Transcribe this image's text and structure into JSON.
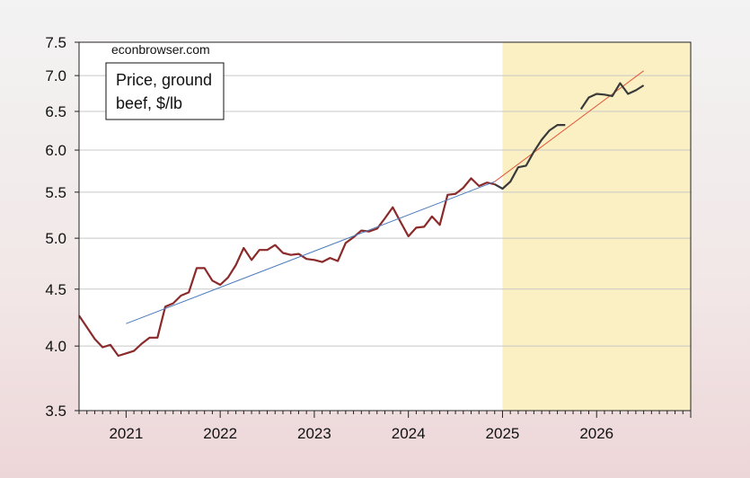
{
  "chart_data": {
    "type": "line",
    "y_scale": "log",
    "ylim": [
      3.5,
      7.5
    ],
    "y_ticks": [
      "3.5",
      "4.0",
      "4.5",
      "5.0",
      "5.5",
      "6.0",
      "6.5",
      "7.0",
      "7.5"
    ],
    "x_ticks": [
      "2021",
      "2022",
      "2023",
      "2024",
      "2025",
      "2026"
    ],
    "xlim": [
      "2020-07",
      "2026-12"
    ],
    "shaded_region": {
      "from": "2025-01",
      "to": "2026-12",
      "color": "#fbf0c4"
    },
    "grid": true,
    "annotation": "econbrowser.com",
    "legend_box": [
      "Price, ground",
      "beef, $/lb"
    ],
    "series": [
      {
        "color": "#8b2a2a",
        "x": [
          "2020-07",
          "2020-08",
          "2020-09",
          "2020-10",
          "2020-11",
          "2020-12",
          "2021-01",
          "2021-02",
          "2021-03",
          "2021-04",
          "2021-05",
          "2021-06",
          "2021-07",
          "2021-08",
          "2021-09",
          "2021-10",
          "2021-11",
          "2021-12",
          "2022-01",
          "2022-02",
          "2022-03",
          "2022-04",
          "2022-05",
          "2022-06",
          "2022-07",
          "2022-08",
          "2022-09",
          "2022-10",
          "2022-11",
          "2022-12",
          "2023-01",
          "2023-02",
          "2023-03",
          "2023-04",
          "2023-05",
          "2023-06",
          "2023-07",
          "2023-08",
          "2023-09",
          "2023-10",
          "2023-11",
          "2023-12",
          "2024-01",
          "2024-02",
          "2024-03",
          "2024-04",
          "2024-05",
          "2024-06",
          "2024-07",
          "2024-08",
          "2024-09",
          "2024-10",
          "2024-11",
          "2024-12"
        ],
        "values": [
          4.26,
          4.16,
          4.06,
          3.99,
          4.01,
          3.92,
          3.94,
          3.96,
          4.02,
          4.07,
          4.07,
          4.34,
          4.37,
          4.44,
          4.47,
          4.7,
          4.7,
          4.58,
          4.54,
          4.61,
          4.73,
          4.9,
          4.78,
          4.88,
          4.88,
          4.93,
          4.85,
          4.83,
          4.84,
          4.79,
          4.78,
          4.76,
          4.8,
          4.77,
          4.95,
          5.01,
          5.08,
          5.07,
          5.1,
          5.21,
          5.33,
          5.17,
          5.02,
          5.11,
          5.12,
          5.23,
          5.14,
          5.47,
          5.48,
          5.55,
          5.66,
          5.57,
          5.61,
          5.59
        ]
      },
      {
        "color": "#4a7bbd",
        "x": [
          "2021-01",
          "2024-12"
        ],
        "values": [
          4.19,
          5.62
        ]
      },
      {
        "color": "#e05a3a",
        "x": [
          "2024-12",
          "2026-07"
        ],
        "values": [
          5.62,
          7.07
        ]
      },
      {
        "color": "#3a3a3a",
        "x": [
          "2024-12",
          "2025-01",
          "2025-02",
          "2025-03",
          "2025-04",
          "2025-05",
          "2025-06",
          "2025-07",
          "2025-08",
          "2025-09",
          "2025-11",
          "2025-12",
          "2026-01",
          "2026-02",
          "2026-03",
          "2026-04",
          "2026-05",
          "2026-06",
          "2026-07"
        ],
        "values": [
          5.59,
          5.54,
          5.62,
          5.79,
          5.81,
          5.98,
          6.13,
          6.25,
          6.32,
          6.32,
          6.53,
          6.69,
          6.74,
          6.73,
          6.71,
          6.89,
          6.74,
          6.79,
          6.86
        ]
      }
    ]
  }
}
